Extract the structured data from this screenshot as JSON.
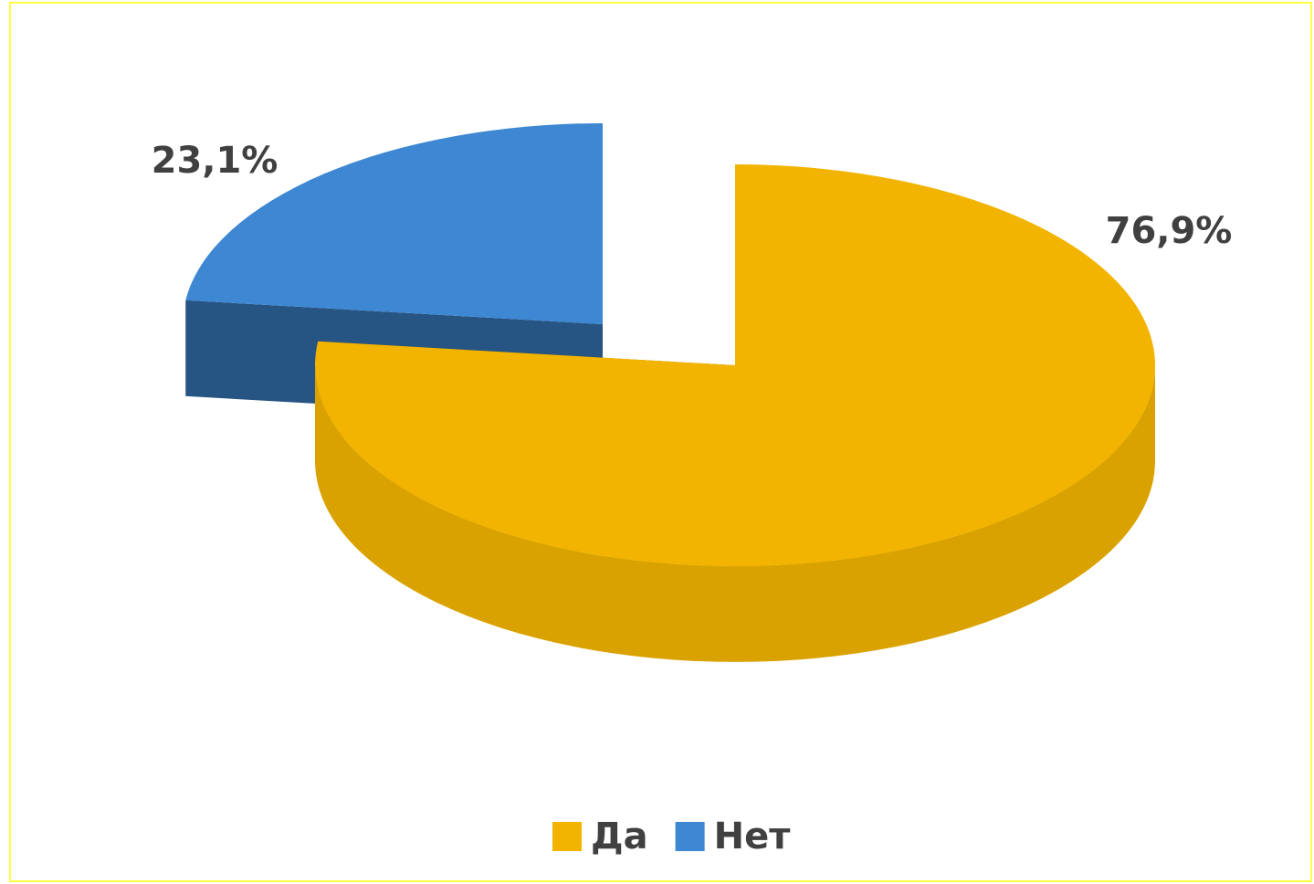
{
  "chart_data": {
    "type": "pie3d",
    "categories": [
      "Да",
      "Нет"
    ],
    "values": [
      76.9,
      23.1
    ],
    "value_labels": [
      "76,9%",
      "23,1%"
    ],
    "colors": [
      "#f2b400",
      "#3d87d3"
    ],
    "legend": "bottom"
  }
}
